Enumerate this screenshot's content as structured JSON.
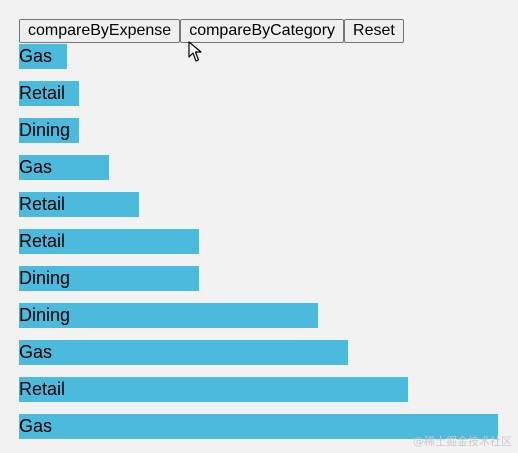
{
  "toolbar": {
    "buttons": [
      {
        "label": "compareByExpense"
      },
      {
        "label": "compareByCategory"
      },
      {
        "label": "Reset"
      }
    ]
  },
  "bars": [
    {
      "label": "Gas",
      "value": 48
    },
    {
      "label": "Retail",
      "value": 60
    },
    {
      "label": "Dining",
      "value": 60
    },
    {
      "label": "Gas",
      "value": 90
    },
    {
      "label": "Retail",
      "value": 120
    },
    {
      "label": "Retail",
      "value": 180
    },
    {
      "label": "Dining",
      "value": 180
    },
    {
      "label": "Dining",
      "value": 299
    },
    {
      "label": "Gas",
      "value": 329
    },
    {
      "label": "Retail",
      "value": 389
    },
    {
      "label": "Gas",
      "value": 479
    }
  ],
  "colors": {
    "bar": "#4bbadd"
  },
  "watermark": "@稀土掘金技术社区"
}
